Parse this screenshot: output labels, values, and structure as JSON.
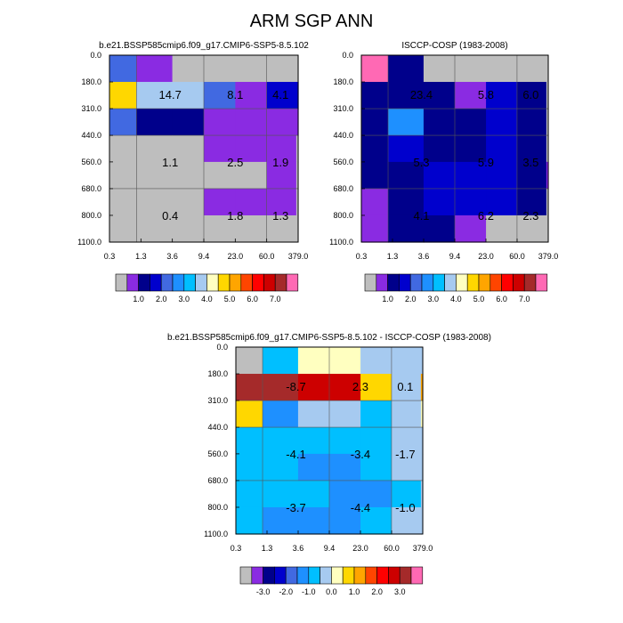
{
  "figure": {
    "title": "ARM SGP ANN"
  },
  "palette": {
    "cloud_fraction": [
      "#BEBEBE",
      "#8A2BE2",
      "#00008B",
      "#0000CD",
      "#4169E1",
      "#1E90FF",
      "#00BFFF",
      "#A6CAF0",
      "#FFFFC0",
      "#FFD700",
      "#FFA500",
      "#FF4500",
      "#FF0000",
      "#CD0000",
      "#A52A2A",
      "#FF69B4"
    ],
    "difference": [
      "#BEBEBE",
      "#8A2BE2",
      "#00008B",
      "#0000CD",
      "#4169E1",
      "#1E90FF",
      "#00BFFF",
      "#A6CAF0",
      "#FFFFC0",
      "#FFD700",
      "#FFA500",
      "#FF4500",
      "#FF0000",
      "#CD0000",
      "#A52A2A",
      "#FF69B4"
    ]
  },
  "chart_data": [
    {
      "type": "heatmap",
      "title": "b.e21.BSSP585cmip6.f09_g17.CMIP6-SSP5-8.5.102",
      "x_tick_labels": [
        "0.3",
        "1.3",
        "3.6",
        "9.4",
        "23.0",
        "60.0",
        "379.0"
      ],
      "y_tick_labels": [
        "0.0",
        "180.0",
        "310.0",
        "440.0",
        "560.0",
        "680.0",
        "800.0",
        "1100.0"
      ],
      "cell_colors": [
        [
          "#4169E1",
          "#8A2BE2",
          "#BEBEBE",
          "#BEBEBE",
          "#BEBEBE",
          "#BEBEBE",
          "#BEBEBE"
        ],
        [
          "#FFD700",
          "#A6CAF0",
          "#A6CAF0",
          "#4169E1",
          "#8A2BE2",
          "#0000CD",
          "#0000CD"
        ],
        [
          "#4169E1",
          "#00008B",
          "#00008B",
          "#8A2BE2",
          "#8A2BE2",
          "#8A2BE2",
          "#8A2BE2"
        ],
        [
          "#BEBEBE",
          "#BEBEBE",
          "#BEBEBE",
          "#8A2BE2",
          "#8A2BE2",
          "#8A2BE2",
          "#BEBEBE"
        ],
        [
          "#BEBEBE",
          "#BEBEBE",
          "#BEBEBE",
          "#BEBEBE",
          "#BEBEBE",
          "#8A2BE2",
          "#BEBEBE"
        ],
        [
          "#BEBEBE",
          "#BEBEBE",
          "#BEBEBE",
          "#8A2BE2",
          "#8A2BE2",
          "#8A2BE2",
          "#BEBEBE"
        ],
        [
          "#BEBEBE",
          "#BEBEBE",
          "#BEBEBE",
          "#BEBEBE",
          "#BEBEBE",
          "#BEBEBE",
          "#BEBEBE"
        ]
      ],
      "block_values": [
        [
          "14.7",
          "8.1",
          "4.1"
        ],
        [
          "1.1",
          "2.5",
          "1.9"
        ],
        [
          "0.4",
          "1.8",
          "1.3"
        ]
      ],
      "colorbar_labels": [
        "1.0",
        "2.0",
        "3.0",
        "4.0",
        "5.0",
        "6.0",
        "7.0"
      ]
    },
    {
      "type": "heatmap",
      "title": "ISCCP-COSP (1983-2008)",
      "x_tick_labels": [
        "0.3",
        "1.3",
        "3.6",
        "9.4",
        "23.0",
        "60.0",
        "379.0"
      ],
      "y_tick_labels": [
        "0.0",
        "180.0",
        "310.0",
        "440.0",
        "560.0",
        "680.0",
        "800.0",
        "1100.0"
      ],
      "cell_colors": [
        [
          "#FF69B4",
          "#00008B",
          "#BEBEBE",
          "#BEBEBE",
          "#BEBEBE",
          "#BEBEBE",
          "#BEBEBE"
        ],
        [
          "#00008B",
          "#00008B",
          "#00008B",
          "#8A2BE2",
          "#0000CD",
          "#00008B",
          "#BEBEBE"
        ],
        [
          "#00008B",
          "#1E90FF",
          "#00008B",
          "#00008B",
          "#0000CD",
          "#00008B",
          "#BEBEBE"
        ],
        [
          "#00008B",
          "#0000CD",
          "#00008B",
          "#00008B",
          "#0000CD",
          "#00008B",
          "#BEBEBE"
        ],
        [
          "#00008B",
          "#00008B",
          "#0000CD",
          "#0000CD",
          "#0000CD",
          "#00008B",
          "#8A2BE2"
        ],
        [
          "#8A2BE2",
          "#00008B",
          "#0000CD",
          "#0000CD",
          "#0000CD",
          "#00008B",
          "#BEBEBE"
        ],
        [
          "#8A2BE2",
          "#00008B",
          "#00008B",
          "#8A2BE2",
          "#BEBEBE",
          "#BEBEBE",
          "#BEBEBE"
        ]
      ],
      "block_values": [
        [
          "23.4",
          "5.8",
          "6.0"
        ],
        [
          "5.3",
          "5.9",
          "3.5"
        ],
        [
          "4.1",
          "6.2",
          "2.3"
        ]
      ],
      "colorbar_labels": [
        "1.0",
        "2.0",
        "3.0",
        "4.0",
        "5.0",
        "6.0",
        "7.0"
      ]
    },
    {
      "type": "heatmap",
      "title": "b.e21.BSSP585cmip6.f09_g17.CMIP6-SSP5-8.5.102 - ISCCP-COSP (1983-2008)",
      "x_tick_labels": [
        "0.3",
        "1.3",
        "3.6",
        "9.4",
        "23.0",
        "60.0",
        "379.0"
      ],
      "y_tick_labels": [
        "0.0",
        "180.0",
        "310.0",
        "440.0",
        "560.0",
        "680.0",
        "800.0",
        "1100.0"
      ],
      "cell_colors": [
        [
          "#BEBEBE",
          "#00BFFF",
          "#FFFFC0",
          "#FFFFC0",
          "#A6CAF0",
          "#A6CAF0",
          "#A6CAF0"
        ],
        [
          "#A52A2A",
          "#A52A2A",
          "#CD0000",
          "#CD0000",
          "#FFD700",
          "#A6CAF0",
          "#FFA500"
        ],
        [
          "#FFD700",
          "#1E90FF",
          "#A6CAF0",
          "#A6CAF0",
          "#00BFFF",
          "#A6CAF0",
          "#FFFFC0"
        ],
        [
          "#00BFFF",
          "#00BFFF",
          "#00BFFF",
          "#00BFFF",
          "#00BFFF",
          "#A6CAF0",
          "#A6CAF0"
        ],
        [
          "#00BFFF",
          "#00BFFF",
          "#1E90FF",
          "#1E90FF",
          "#00BFFF",
          "#A6CAF0",
          "#A6CAF0"
        ],
        [
          "#00BFFF",
          "#00BFFF",
          "#00BFFF",
          "#1E90FF",
          "#1E90FF",
          "#00BFFF",
          "#A6CAF0"
        ],
        [
          "#00BFFF",
          "#1E90FF",
          "#1E90FF",
          "#1E90FF",
          "#00BFFF",
          "#A6CAF0",
          "#A6CAF0"
        ]
      ],
      "block_values": [
        [
          "-8.7",
          "2.3",
          "0.1"
        ],
        [
          "-4.1",
          "-3.4",
          "-1.7"
        ],
        [
          "-3.7",
          "-4.4",
          "-1.0"
        ]
      ],
      "colorbar_labels": [
        "-3.0",
        "-2.0",
        "-1.0",
        "0.0",
        "1.0",
        "2.0",
        "3.0"
      ]
    }
  ]
}
